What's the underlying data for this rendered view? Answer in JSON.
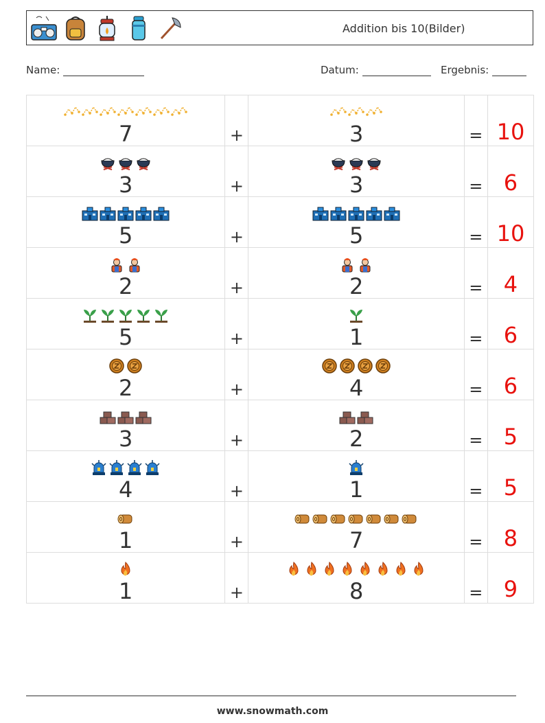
{
  "header": {
    "title": "Addition bis 10(Bilder)",
    "icons": [
      "radio-icon",
      "backpack-icon",
      "lantern-icon",
      "thermos-icon",
      "axe-icon"
    ]
  },
  "meta": {
    "name_label": "Name:",
    "date_label": "Datum:",
    "result_label": "Ergebnis:"
  },
  "problems": [
    {
      "a": "7",
      "b": "3",
      "plus": "+",
      "eq": "=",
      "result": "10",
      "icon": "constellation-icon",
      "color": "#f0b030"
    },
    {
      "a": "3",
      "b": "3",
      "plus": "+",
      "eq": "=",
      "result": "6",
      "icon": "campfire-pot-icon",
      "color": "#2a3a55"
    },
    {
      "a": "5",
      "b": "5",
      "plus": "+",
      "eq": "=",
      "result": "10",
      "icon": "building-icon",
      "color": "#1f6fb5"
    },
    {
      "a": "2",
      "b": "2",
      "plus": "+",
      "eq": "=",
      "result": "4",
      "icon": "worker-icon",
      "color": "#e45a2a"
    },
    {
      "a": "5",
      "b": "1",
      "plus": "+",
      "eq": "=",
      "result": "6",
      "icon": "sprout-icon",
      "color": "#3aa04a"
    },
    {
      "a": "2",
      "b": "4",
      "plus": "+",
      "eq": "=",
      "result": "6",
      "icon": "coin-icon",
      "color": "#d08020"
    },
    {
      "a": "3",
      "b": "2",
      "plus": "+",
      "eq": "=",
      "result": "5",
      "icon": "bricks-icon",
      "color": "#8a5a50"
    },
    {
      "a": "4",
      "b": "1",
      "plus": "+",
      "eq": "=",
      "result": "5",
      "icon": "siren-icon",
      "color": "#2a7fd0"
    },
    {
      "a": "1",
      "b": "7",
      "plus": "+",
      "eq": "=",
      "result": "8",
      "icon": "log-icon",
      "color": "#d08a3a"
    },
    {
      "a": "1",
      "b": "8",
      "plus": "+",
      "eq": "=",
      "result": "9",
      "icon": "flame-icon",
      "color": "#f07020"
    }
  ],
  "footer": {
    "site": "www.snowmath.com"
  }
}
